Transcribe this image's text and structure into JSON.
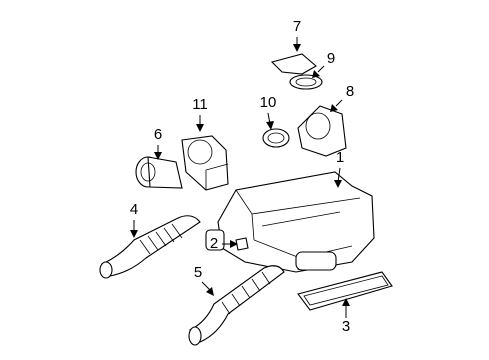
{
  "callouts": [
    {
      "label": "1"
    },
    {
      "label": "2"
    },
    {
      "label": "3"
    },
    {
      "label": "4"
    },
    {
      "label": "5"
    },
    {
      "label": "6"
    },
    {
      "label": "7"
    },
    {
      "label": "8"
    },
    {
      "label": "9"
    },
    {
      "label": "10"
    },
    {
      "label": "11"
    }
  ]
}
